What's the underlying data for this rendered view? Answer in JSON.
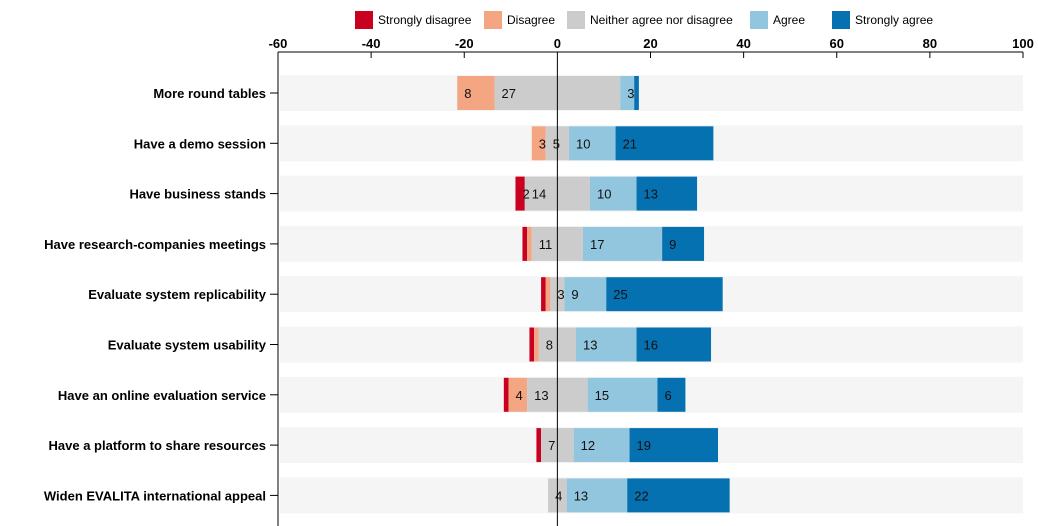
{
  "chart_data": {
    "type": "bar",
    "orientation": "horizontal",
    "stacked": "diverging",
    "title": "",
    "xlabel": "",
    "ylabel": "",
    "xlim": [
      -60,
      100
    ],
    "xticks": [
      -60,
      -40,
      -20,
      0,
      20,
      40,
      60,
      80,
      100
    ],
    "legend_position": "top",
    "categories": [
      "More round tables",
      "Have a demo session",
      "Have business stands",
      "Have research-companies meetings",
      "Evaluate system replicability",
      "Evaluate system usability",
      "Have an online evaluation service",
      "Have a platform to share resources",
      "Widen EVALITA international appeal"
    ],
    "series": [
      {
        "name": "Strongly disagree",
        "color": "#ca0020",
        "values": [
          0,
          0,
          2,
          1,
          1,
          1,
          1,
          1,
          0
        ],
        "labels": [
          "",
          "",
          "2",
          "",
          "",
          "",
          "",
          "",
          ""
        ]
      },
      {
        "name": "Disagree",
        "color": "#f4a582",
        "values": [
          8,
          3,
          0,
          1,
          1,
          1,
          4,
          0,
          0
        ],
        "labels": [
          "8",
          "3",
          "",
          "",
          "",
          "",
          "4",
          "",
          ""
        ]
      },
      {
        "name": "Neither agree nor disagree",
        "color": "#cccccc",
        "values": [
          27,
          5,
          14,
          11,
          3,
          8,
          13,
          7,
          4
        ],
        "labels": [
          "27",
          "5",
          "14",
          "11",
          "3",
          "8",
          "13",
          "7",
          "4"
        ]
      },
      {
        "name": "Agree",
        "color": "#92c5de",
        "values": [
          3,
          10,
          10,
          17,
          9,
          13,
          15,
          12,
          13
        ],
        "labels": [
          "3",
          "10",
          "10",
          "17",
          "9",
          "13",
          "15",
          "12",
          "13"
        ]
      },
      {
        "name": "Strongly agree",
        "color": "#0571b0",
        "values": [
          1,
          21,
          13,
          9,
          25,
          16,
          6,
          19,
          22
        ],
        "labels": [
          "",
          "21",
          "13",
          "9",
          "25",
          "16",
          "6",
          "19",
          "22"
        ]
      }
    ],
    "background_color": "#f5f5f5"
  }
}
